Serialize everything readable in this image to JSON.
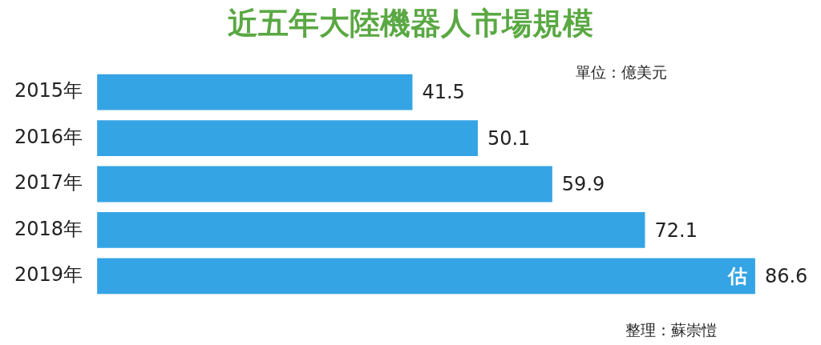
{
  "chart_data": {
    "type": "bar",
    "orientation": "horizontal",
    "title": "近五年大陸機器人市場規模",
    "subtitle": "單位：億美元",
    "categories": [
      "2015年",
      "2016年",
      "2017年",
      "2018年",
      "2019年"
    ],
    "values": [
      41.5,
      50.1,
      59.9,
      72.1,
      86.6
    ],
    "color": "#35a4e4",
    "data_labels": true,
    "legend": false,
    "annotations": [
      {
        "text": "估",
        "x": 86.6,
        "y": "2019年"
      },
      "整理：蘇崇愷"
    ]
  }
}
